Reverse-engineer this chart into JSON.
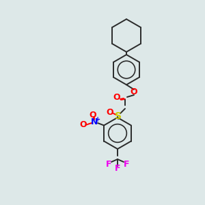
{
  "bg_color": "#dde8e8",
  "line_color": "#2a2a2a",
  "bond_width": 1.4,
  "figsize": [
    3.0,
    3.0
  ],
  "dpi": 100,
  "colors": {
    "O": "#ff0000",
    "S": "#cccc00",
    "N": "#0000ff",
    "F": "#ee00ee",
    "C": "#2a2a2a"
  },
  "scale": 1.0
}
